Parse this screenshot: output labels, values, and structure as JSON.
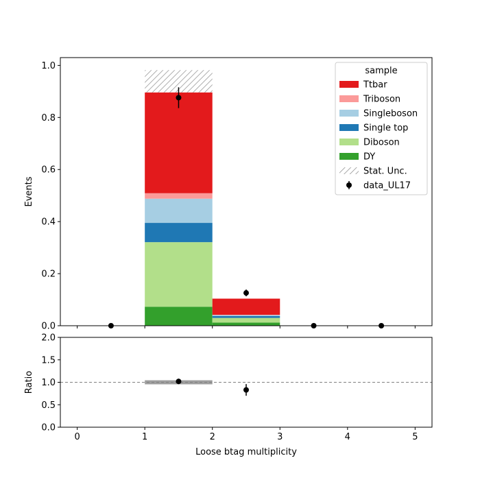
{
  "chart_data": [
    {
      "type": "bar",
      "stacked": true,
      "bin_edges": [
        0,
        1,
        2,
        3,
        4,
        5
      ],
      "xlim": [
        -0.25,
        5.25
      ],
      "ylim": [
        0,
        1.03
      ],
      "ylabel": "Events",
      "yticks": [
        0.0,
        0.2,
        0.4,
        0.6,
        0.8,
        1.0
      ],
      "ytick_labels": [
        "0.0",
        "0.2",
        "0.4",
        "0.6",
        "0.8",
        "1.0"
      ],
      "series": [
        {
          "name": "DY",
          "color": "#33a02c",
          "values": [
            0,
            0.073,
            0.012,
            0,
            0
          ]
        },
        {
          "name": "Diboson",
          "color": "#b2df8a",
          "values": [
            0,
            0.248,
            0.018,
            0,
            0
          ]
        },
        {
          "name": "Single top",
          "color": "#1f78b4",
          "values": [
            0,
            0.074,
            0.007,
            0,
            0
          ]
        },
        {
          "name": "Singleboson",
          "color": "#a6cee3",
          "values": [
            0,
            0.093,
            0.004,
            0,
            0
          ]
        },
        {
          "name": "Triboson",
          "color": "#fb9a99",
          "values": [
            0,
            0.021,
            0.001,
            0,
            0
          ]
        },
        {
          "name": "Ttbar",
          "color": "#e31a1c",
          "values": [
            0,
            0.387,
            0.062,
            0,
            0
          ]
        }
      ],
      "stat_unc": {
        "name": "Stat. Unc.",
        "bins": [
          {
            "bin": 1,
            "low": 0.896,
            "high": 0.982
          }
        ]
      },
      "data": {
        "name": "data_UL17",
        "x": [
          0.5,
          1.5,
          2.5,
          3.5,
          4.5
        ],
        "y": [
          0,
          0.876,
          0.126,
          0,
          0
        ],
        "err": [
          0,
          0.04,
          0.013,
          0,
          0
        ]
      },
      "legend": {
        "title": "sample",
        "placement": "top-right",
        "entries": [
          "Ttbar",
          "Triboson",
          "Singleboson",
          "Single top",
          "Diboson",
          "DY",
          "Stat. Unc.",
          "data_UL17"
        ]
      }
    },
    {
      "type": "scatter",
      "xlabel": "Loose btag multiplicity",
      "ylabel": "Ratio",
      "xlim": [
        -0.25,
        5.25
      ],
      "ylim": [
        0,
        2
      ],
      "xticks": [
        0,
        1,
        2,
        3,
        4,
        5
      ],
      "xtick_labels": [
        "0",
        "1",
        "2",
        "3",
        "4",
        "5"
      ],
      "yticks": [
        0,
        0.5,
        1.0,
        1.5,
        2.0
      ],
      "ytick_labels": [
        "0.0",
        "0.5",
        "1.0",
        "1.5",
        "2.0"
      ],
      "reference_line": 1.0,
      "unc_band": [
        {
          "bin": 1,
          "low": 0.955,
          "high": 1.045
        }
      ],
      "points": [
        {
          "x": 1.5,
          "y": 1.02,
          "err": 0.06
        },
        {
          "x": 2.5,
          "y": 0.83,
          "err": 0.13
        }
      ]
    }
  ]
}
